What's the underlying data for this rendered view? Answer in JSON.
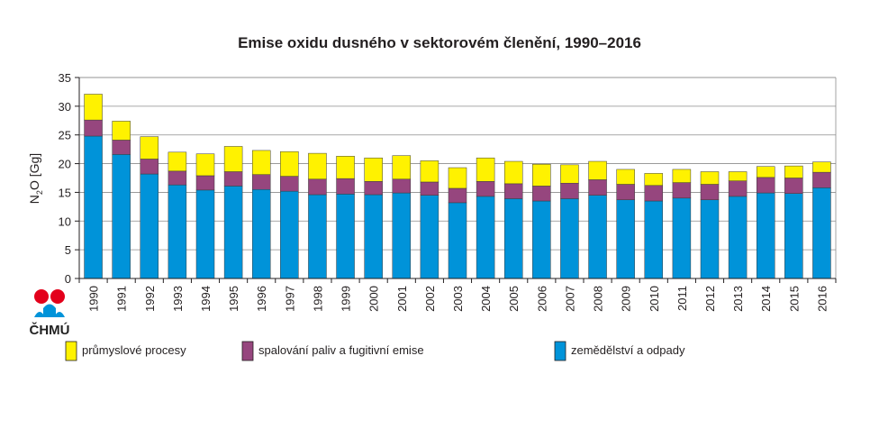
{
  "chart_data": {
    "type": "bar",
    "stacked": true,
    "title": "Emise oxidu dusného v sektorovém členění, 1990–2016",
    "ylabel": "N2O [Gg]",
    "ylim": [
      0,
      35
    ],
    "yticks": [
      0,
      5,
      10,
      15,
      20,
      25,
      30,
      35
    ],
    "grid": true,
    "legend_position": "bottom",
    "categories": [
      "1990",
      "1991",
      "1992",
      "1993",
      "1994",
      "1995",
      "1996",
      "1997",
      "1998",
      "1999",
      "2000",
      "2001",
      "2002",
      "2003",
      "2004",
      "2005",
      "2006",
      "2007",
      "2008",
      "2009",
      "2010",
      "2011",
      "2012",
      "2013",
      "2014",
      "2015",
      "2016"
    ],
    "series": [
      {
        "name": "zemědělství a odpady",
        "color": "#0093d9",
        "values": [
          24.8,
          21.6,
          18.2,
          16.3,
          15.4,
          16.1,
          15.5,
          15.2,
          14.6,
          14.7,
          14.6,
          14.9,
          14.5,
          13.2,
          14.3,
          13.9,
          13.5,
          13.9,
          14.5,
          13.7,
          13.5,
          14.0,
          13.7,
          14.3,
          14.9,
          14.8,
          15.8
        ]
      },
      {
        "name": "spalování paliv a fugitivní emise",
        "color": "#96467e",
        "values": [
          2.8,
          2.5,
          2.6,
          2.4,
          2.5,
          2.5,
          2.6,
          2.6,
          2.7,
          2.7,
          2.3,
          2.4,
          2.3,
          2.5,
          2.6,
          2.6,
          2.6,
          2.7,
          2.7,
          2.7,
          2.7,
          2.7,
          2.7,
          2.7,
          2.7,
          2.7,
          2.7
        ]
      },
      {
        "name": "průmyslové procesy",
        "color": "#fff200",
        "values": [
          4.5,
          3.3,
          3.9,
          3.3,
          3.8,
          4.4,
          4.2,
          4.3,
          4.5,
          3.9,
          4.1,
          4.1,
          3.7,
          3.6,
          4.1,
          3.9,
          3.8,
          3.2,
          3.2,
          2.6,
          2.1,
          2.3,
          2.2,
          1.6,
          1.9,
          2.1,
          1.8
        ]
      }
    ]
  },
  "logo": {
    "text": "ČHMÚ"
  }
}
